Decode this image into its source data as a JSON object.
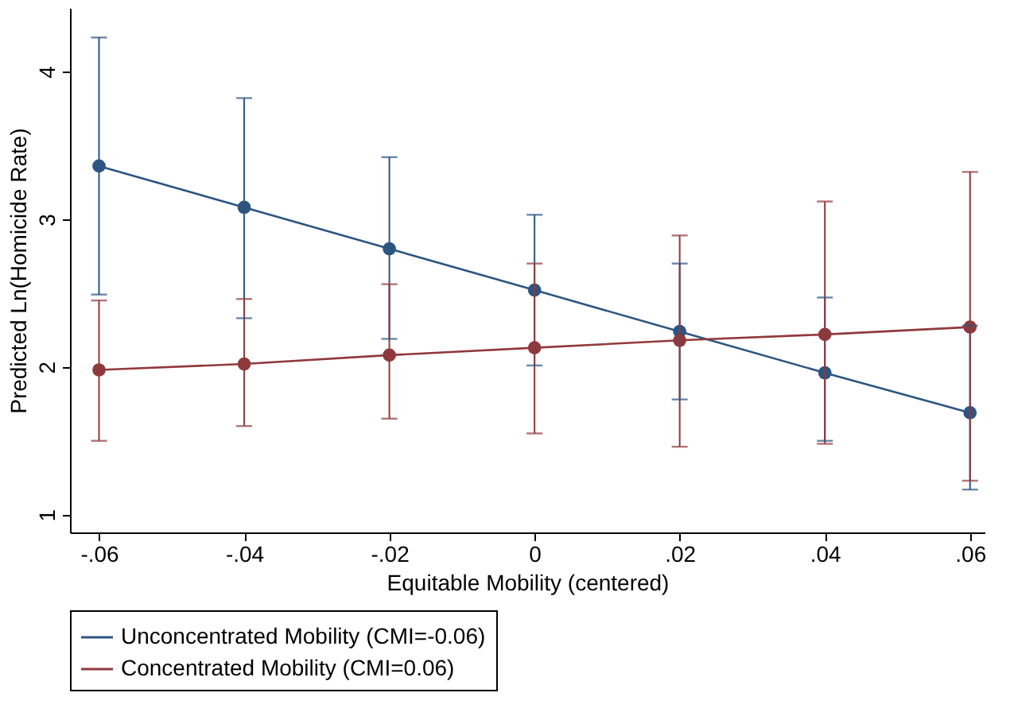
{
  "chart_data": {
    "type": "line",
    "xlabel": "Equitable Mobility (centered)",
    "ylabel": "Predicted Ln(Homicide Rate)",
    "x": [
      -0.06,
      -0.04,
      -0.02,
      0,
      0.02,
      0.04,
      0.06
    ],
    "xlim": [
      -0.064,
      0.062
    ],
    "ylim": [
      0.88,
      4.43
    ],
    "xticks": [
      {
        "value": -0.06,
        "label": "-.06"
      },
      {
        "value": -0.04,
        "label": "-.04"
      },
      {
        "value": -0.02,
        "label": "-.02"
      },
      0,
      {
        "value": 0.02,
        "label": ".02"
      },
      {
        "value": 0.04,
        "label": ".04"
      },
      {
        "value": 0.06,
        "label": ".06"
      }
    ],
    "yticks": [
      1,
      2,
      3,
      4
    ],
    "marker": "circle",
    "grid": false,
    "legend": "bottom",
    "series": [
      {
        "name": "Unconcentrated Mobility (CMI=-0.06)",
        "color": "#2c5582",
        "values": [
          3.36,
          3.08,
          2.8,
          2.52,
          2.24,
          1.96,
          1.69
        ],
        "errors": [
          [
            2.49,
            4.23
          ],
          [
            2.33,
            3.82
          ],
          [
            2.19,
            3.42
          ],
          [
            2.01,
            3.03
          ],
          [
            1.78,
            2.7
          ],
          [
            1.5,
            2.47
          ],
          [
            1.17,
            2.28
          ]
        ]
      },
      {
        "name": "Concentrated Mobility (CMI=0.06)",
        "color": "#90393c",
        "values": [
          1.98,
          2.02,
          2.08,
          2.13,
          2.18,
          2.22,
          2.27
        ],
        "errors": [
          [
            1.5,
            2.45
          ],
          [
            1.6,
            2.46
          ],
          [
            1.65,
            2.56
          ],
          [
            1.55,
            2.7
          ],
          [
            1.46,
            2.89
          ],
          [
            1.48,
            3.12
          ],
          [
            1.23,
            3.32
          ]
        ]
      }
    ]
  }
}
